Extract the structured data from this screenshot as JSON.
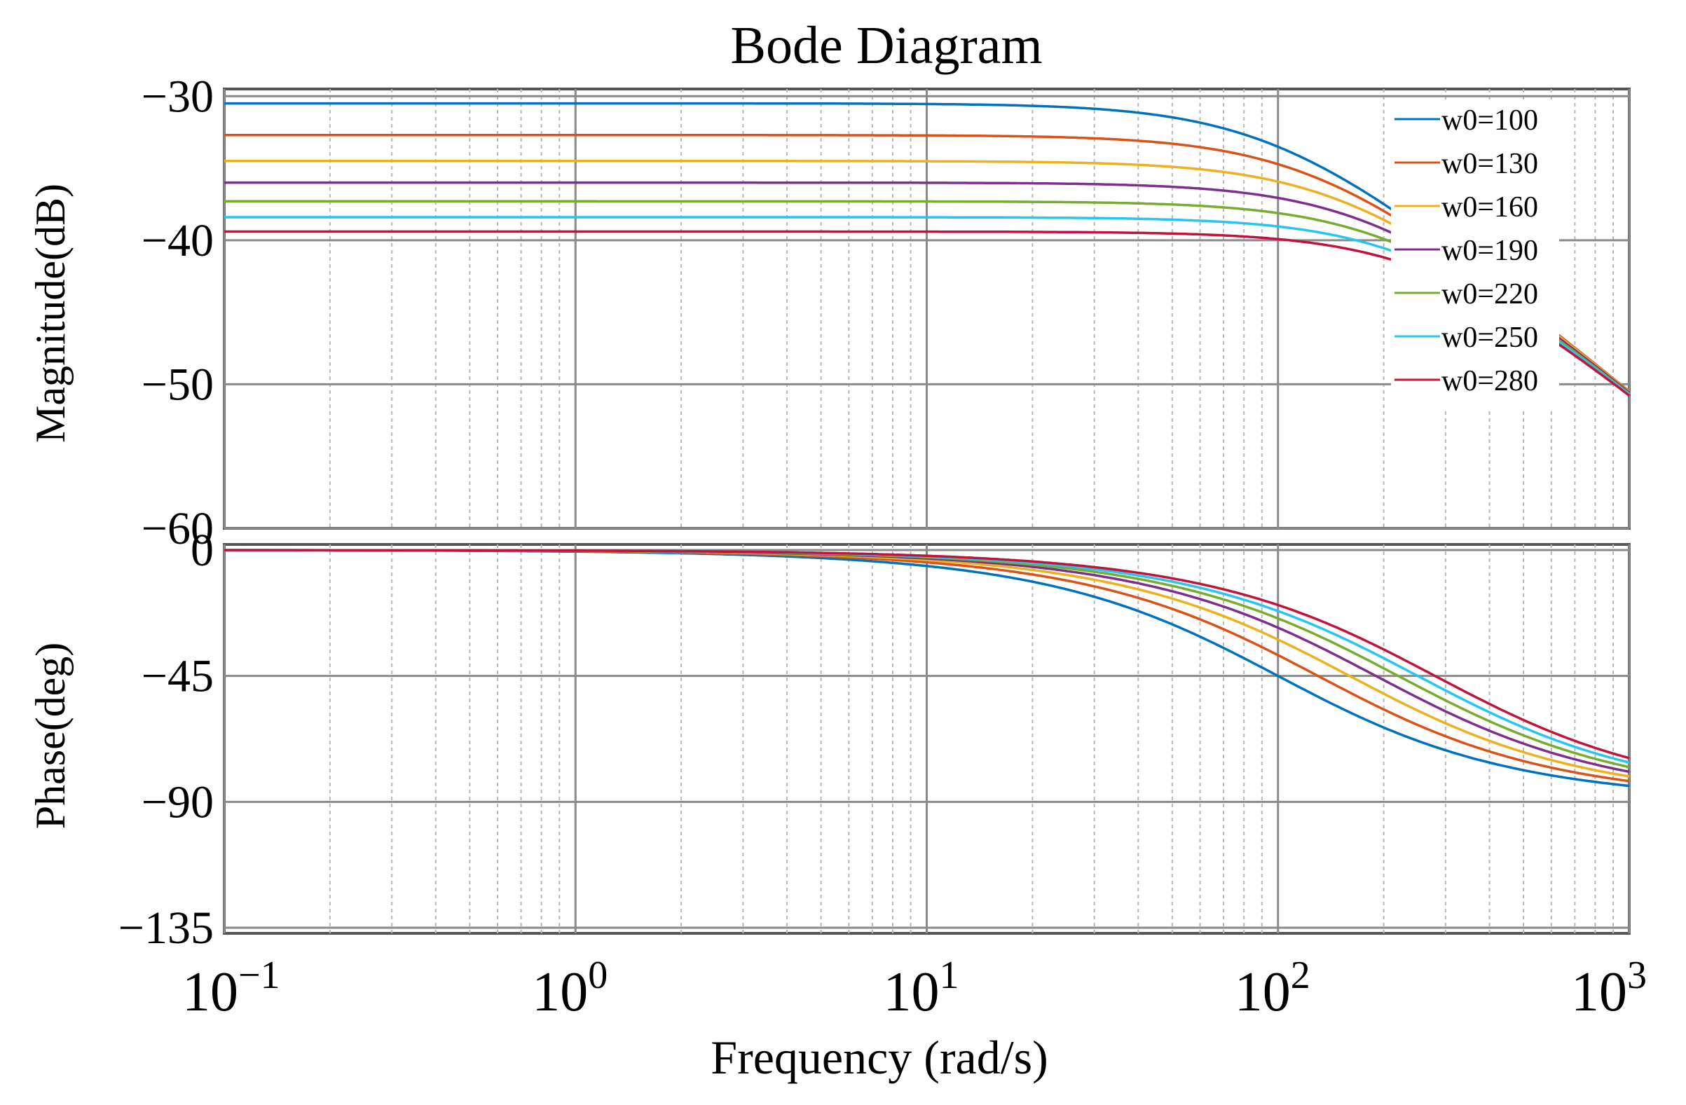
{
  "chart_data": {
    "type": "line",
    "title": "Bode Diagram",
    "xlabel": "Frequency (rad/s)",
    "x_scale": "log",
    "xlim": [
      0.1,
      1000
    ],
    "x_ticks": [
      {
        "value": 0.1,
        "base": "10",
        "exp": "−1"
      },
      {
        "value": 1,
        "base": "10",
        "exp": "0"
      },
      {
        "value": 10,
        "base": "10",
        "exp": "1"
      },
      {
        "value": 100,
        "base": "10",
        "exp": "2"
      },
      {
        "value": 1000,
        "base": "10",
        "exp": "3"
      }
    ],
    "magnitude": {
      "ylabel": "Magnitude(dB)",
      "ylim": [
        -60,
        -29.5
      ],
      "y_ticks": [
        {
          "value": -30,
          "label": "−30"
        },
        {
          "value": -40,
          "label": "−40"
        },
        {
          "value": -50,
          "label": "−50"
        },
        {
          "value": -60,
          "label": "−60"
        }
      ],
      "grid": true
    },
    "phase": {
      "ylabel": "Phase(deg)",
      "ylim": [
        -137,
        2
      ],
      "y_ticks": [
        {
          "value": 0,
          "label": "0"
        },
        {
          "value": -45,
          "label": "−45"
        },
        {
          "value": -90,
          "label": "−90"
        },
        {
          "value": -135,
          "label": "−135"
        }
      ],
      "grid": true
    },
    "legend": {
      "position": "top-right"
    },
    "model": "first-order low-pass H(s) = K/(s/w0 + 1)",
    "series": [
      {
        "name": "w0=100",
        "w0": 100,
        "dc_gain_db": -30.5,
        "color": "#0072BD"
      },
      {
        "name": "w0=130",
        "w0": 130,
        "dc_gain_db": -32.7,
        "color": "#D95319"
      },
      {
        "name": "w0=160",
        "w0": 160,
        "dc_gain_db": -34.5,
        "color": "#EDB120"
      },
      {
        "name": "w0=190",
        "w0": 190,
        "dc_gain_db": -36.0,
        "color": "#7E2F8E"
      },
      {
        "name": "w0=220",
        "w0": 220,
        "dc_gain_db": -37.3,
        "color": "#77AC30"
      },
      {
        "name": "w0=250",
        "w0": 250,
        "dc_gain_db": -38.4,
        "color": "#26C6F0"
      },
      {
        "name": "w0=280",
        "w0": 280,
        "dc_gain_db": -39.4,
        "color": "#C0143C"
      }
    ]
  }
}
